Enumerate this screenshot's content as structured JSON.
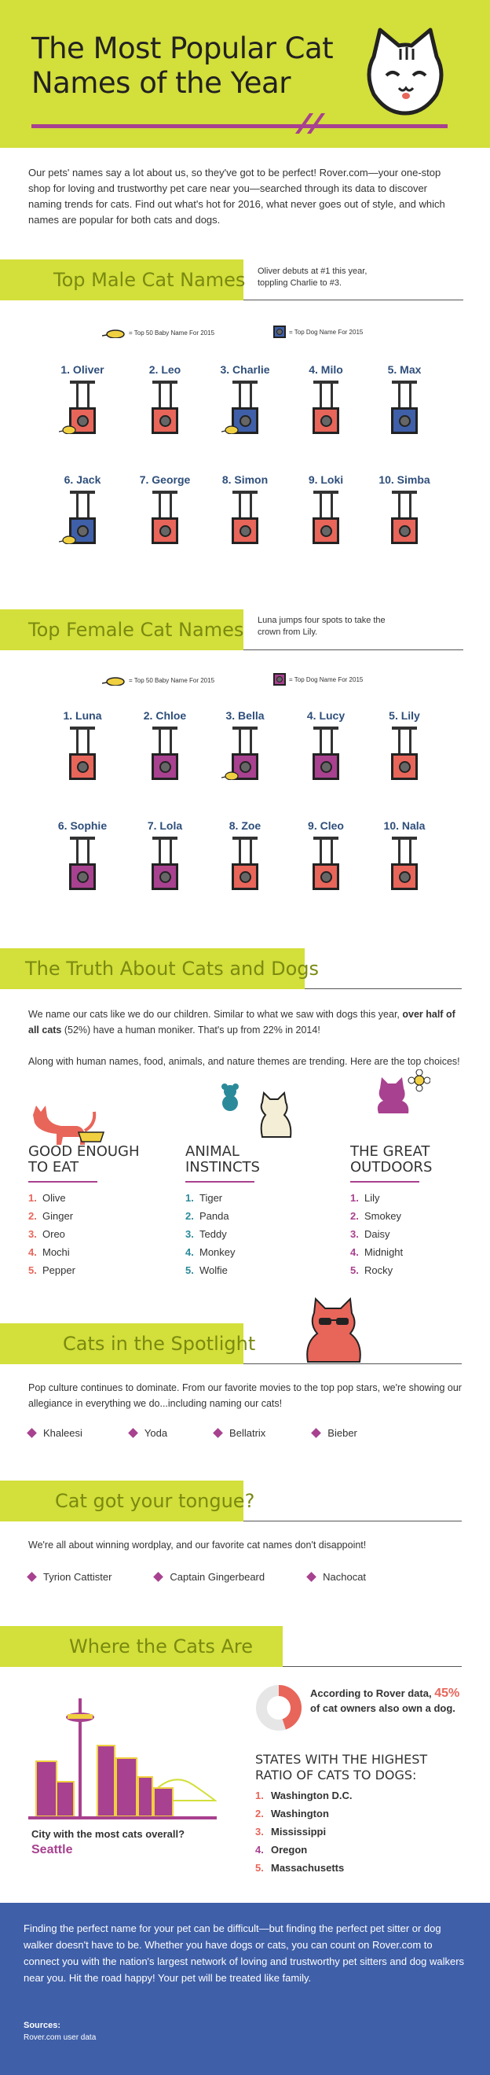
{
  "hero": {
    "title_line1": "The Most Popular Cat",
    "title_line2": "Names of the Year"
  },
  "intro": "Our pets' names say a lot about us, so they've got to be perfect! Rover.com—your one-stop shop for loving and trustworthy pet care near you—searched through its data to discover naming trends for cats. Find out what's hot for 2016, what never goes out of style, and which names are popular for both cats and dogs.",
  "colors": {
    "accent_yellow": "#d3df3a",
    "purple": "#a8418f",
    "coral": "#e8655a",
    "blue": "#3f5fa8",
    "navy_text": "#2e4e7a"
  },
  "male": {
    "title": "Top Male Cat Names",
    "note": "Oliver debuts at #1 this year, toppling Charlie to #3.",
    "legend_baby": "= Top 50 Baby Name For 2015",
    "legend_dog": "= Top Dog Name For 2015",
    "names": [
      {
        "label": "1. Oliver",
        "baby": true,
        "dog": false
      },
      {
        "label": "2. Leo",
        "baby": false,
        "dog": false
      },
      {
        "label": "3. Charlie",
        "baby": true,
        "dog": true
      },
      {
        "label": "4. Milo",
        "baby": false,
        "dog": false
      },
      {
        "label": "5. Max",
        "baby": false,
        "dog": true
      },
      {
        "label": "6. Jack",
        "baby": true,
        "dog": true
      },
      {
        "label": "7. George",
        "baby": false,
        "dog": false
      },
      {
        "label": "8. Simon",
        "baby": false,
        "dog": false
      },
      {
        "label": "9. Loki",
        "baby": false,
        "dog": false
      },
      {
        "label": "10. Simba",
        "baby": false,
        "dog": false
      }
    ]
  },
  "female": {
    "title": "Top Female Cat Names",
    "note": "Luna jumps four spots to take the crown from Lily.",
    "legend_baby": "= Top 50 Baby Name For 2015",
    "legend_dog": "= Top Dog Name For 2015",
    "names": [
      {
        "label": "1. Luna",
        "baby": false,
        "dog": false
      },
      {
        "label": "2. Chloe",
        "baby": false,
        "dog": true
      },
      {
        "label": "3. Bella",
        "baby": true,
        "dog": true
      },
      {
        "label": "4. Lucy",
        "baby": false,
        "dog": true
      },
      {
        "label": "5. Lily",
        "baby": false,
        "dog": false
      },
      {
        "label": "6. Sophie",
        "baby": false,
        "dog": true
      },
      {
        "label": "7. Lola",
        "baby": false,
        "dog": true
      },
      {
        "label": "8. Zoe",
        "baby": false,
        "dog": false
      },
      {
        "label": "9. Cleo",
        "baby": false,
        "dog": false
      },
      {
        "label": "10. Nala",
        "baby": false,
        "dog": false
      }
    ]
  },
  "truth": {
    "title": "The Truth About Cats and Dogs",
    "p1_a": "We name our cats like we do our children. Similar to what we saw with dogs this year, ",
    "p1_bold": "over half of all cats",
    "p1_b": " (52%) have a human moniker. That's up from 22% in 2014!",
    "p2": "Along with human names, food, animals, and nature themes are trending. Here are the top choices!",
    "columns": [
      {
        "head1": "GOOD ENOUGH",
        "head2": "TO EAT",
        "items": [
          "Olive",
          "Ginger",
          "Oreo",
          "Mochi",
          "Pepper"
        ],
        "num_color": "#e8655a"
      },
      {
        "head1": "ANIMAL",
        "head2": "INSTINCTS",
        "items": [
          "Tiger",
          "Panda",
          "Teddy",
          "Monkey",
          "Wolfie"
        ],
        "num_color": "#2a8a9a"
      },
      {
        "head1": "THE GREAT",
        "head2": "OUTDOORS",
        "items": [
          "Lily",
          "Smokey",
          "Daisy",
          "Midnight",
          "Rocky"
        ],
        "num_color": "#a8418f"
      }
    ]
  },
  "spotlight": {
    "title": "Cats in the Spotlight",
    "text": "Pop culture continues to dominate. From our favorite movies to the top pop stars, we're showing our allegiance in everything we do...including naming our cats!",
    "tags": [
      "Khaleesi",
      "Yoda",
      "Bellatrix",
      "Bieber"
    ]
  },
  "tongue": {
    "title": "Cat got your tongue?",
    "text": "We're all about winning wordplay, and our favorite cat names don't disappoint!",
    "tags": [
      "Tyrion Cattister",
      "Captain Gingerbeard",
      "Nachocat"
    ]
  },
  "where": {
    "title": "Where the Cats Are",
    "stat_a": "According to Rover data, ",
    "stat_pct": "45%",
    "stat_b": " of cat owners also own a dog.",
    "stat_value": 45,
    "states_head": "STATES WITH THE HIGHEST RATIO OF CATS TO DOGS:",
    "states": [
      "Washington D.C.",
      "Washington",
      "Mississippi",
      "Oregon",
      "Massachusetts"
    ],
    "city_q": "City with the most cats overall?",
    "city": "Seattle"
  },
  "footer": {
    "text": "Finding the perfect name for your pet can be difficult—but finding the perfect pet sitter or dog walker doesn't have to be. Whether you have dogs or cats, you can count on Rover.com to connect you with the nation's largest network of loving and trustworthy pet sitters and dog walkers near you. Hit the road happy! Your pet will be treated like family.",
    "sources_label": "Sources:",
    "sources": "Rover.com user data"
  }
}
